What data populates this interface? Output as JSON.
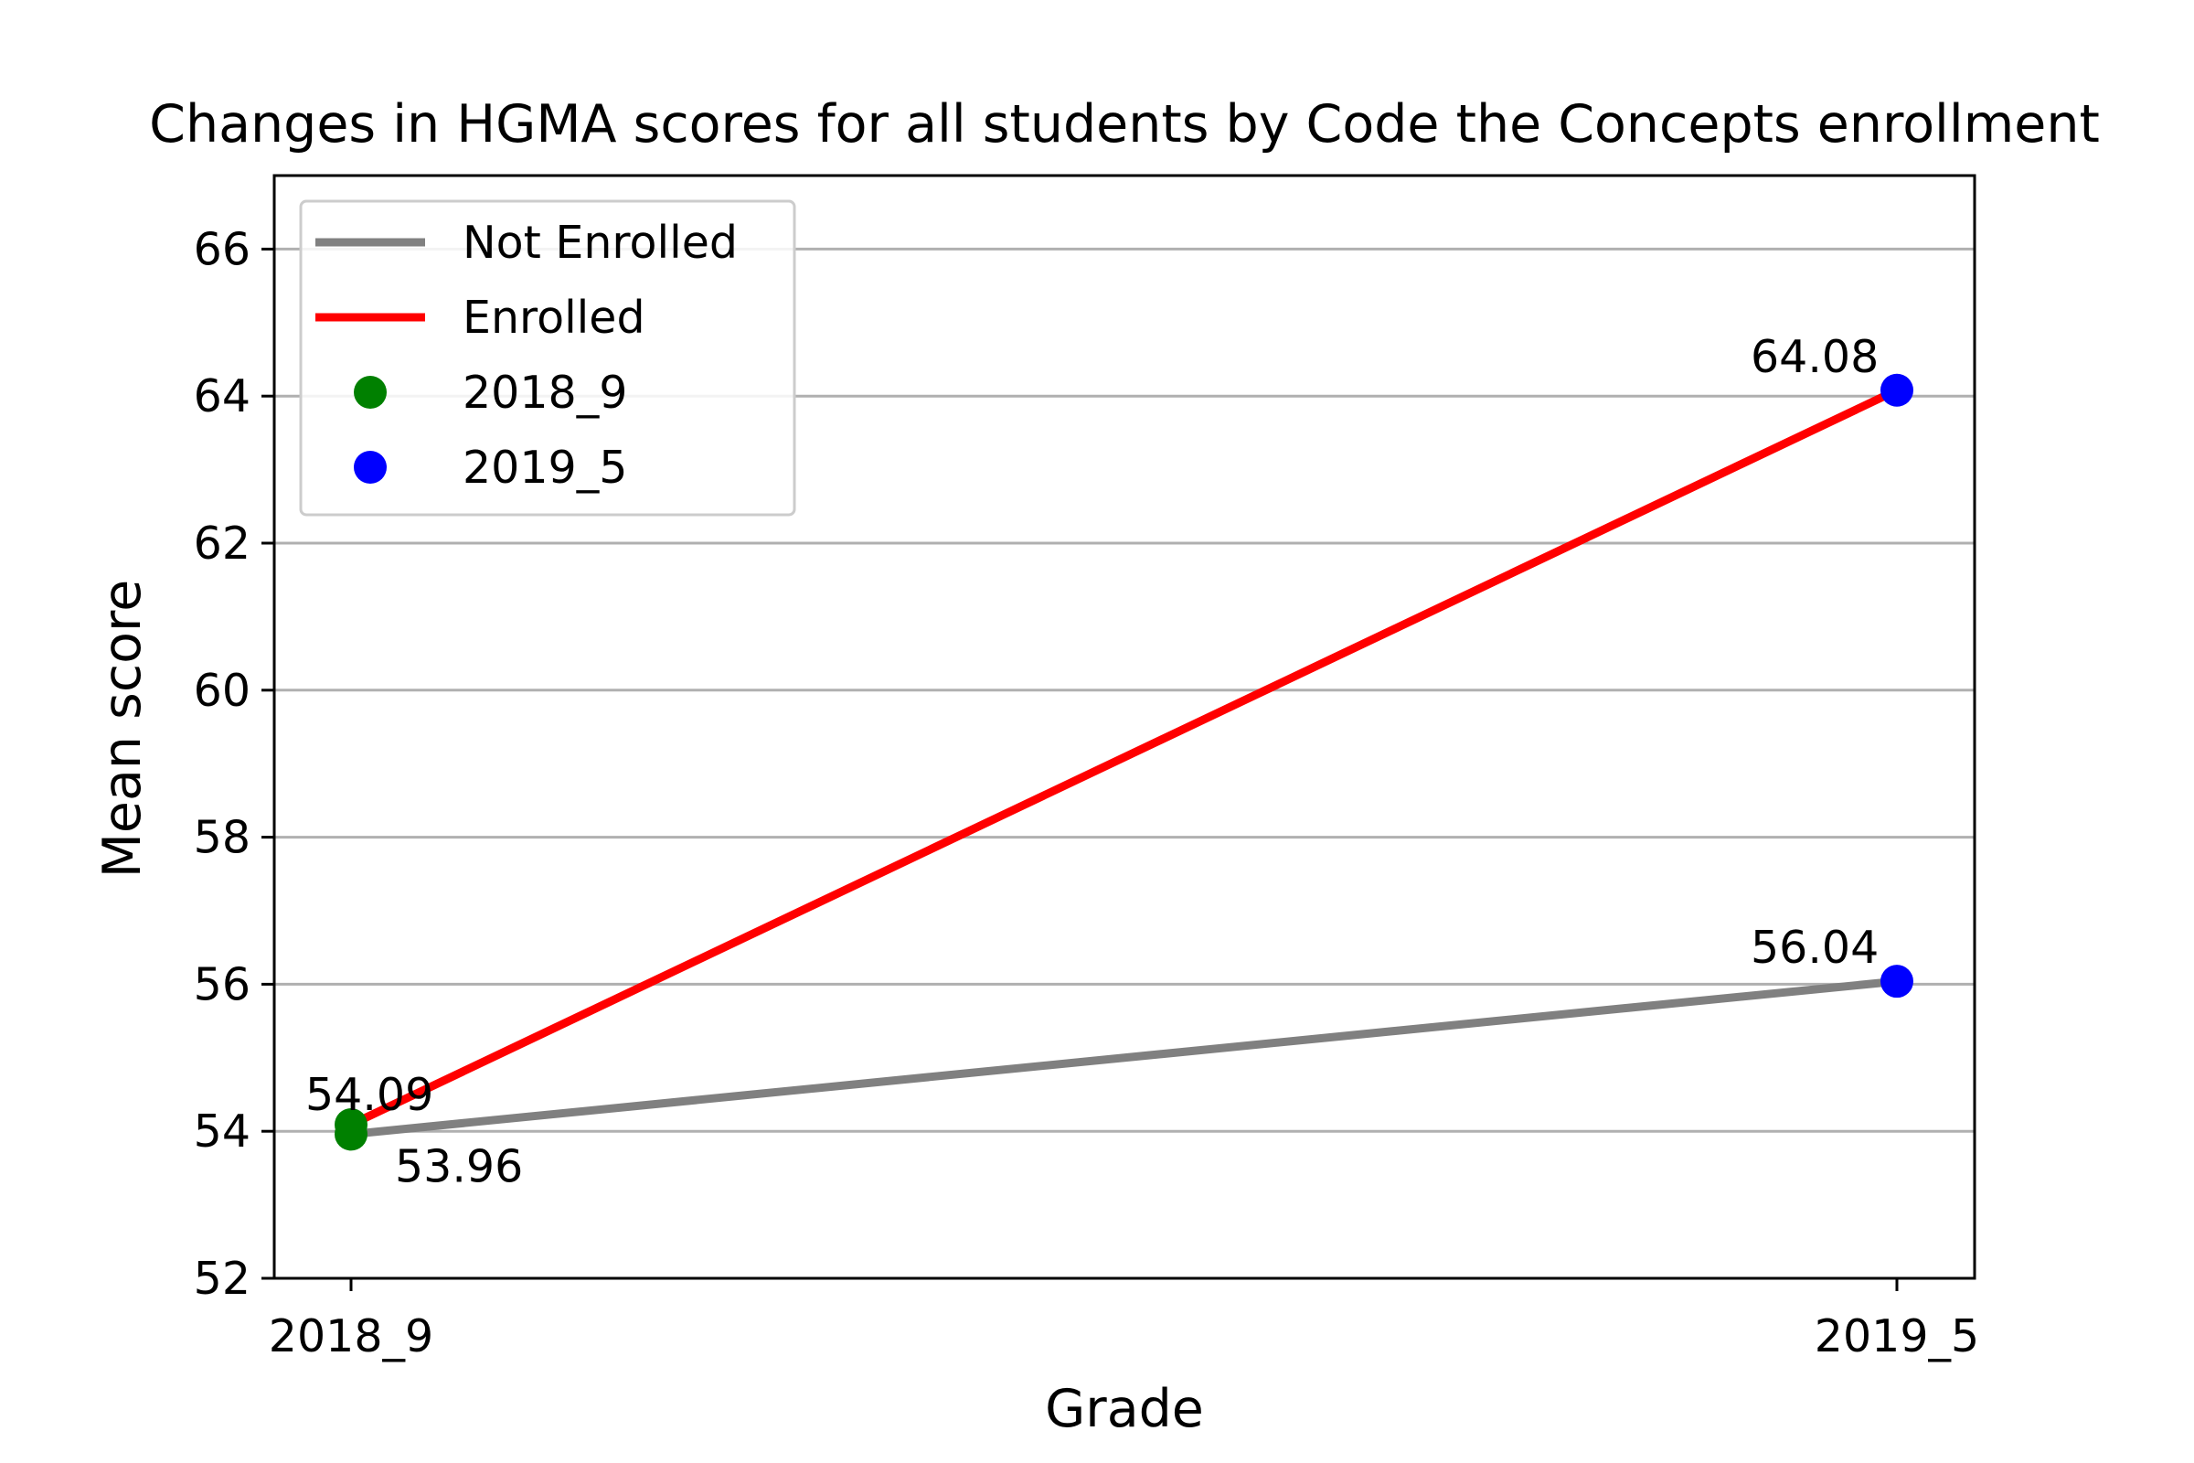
{
  "chart_data": {
    "type": "line",
    "title": "Changes in HGMA scores for all students by Code the Concepts enrollment",
    "xlabel": "Grade",
    "ylabel": "Mean score",
    "categories": [
      "2018_9",
      "2019_5"
    ],
    "ylim": [
      52,
      67
    ],
    "yticks": [
      52,
      54,
      56,
      58,
      60,
      62,
      64,
      66
    ],
    "grid": "horizontal",
    "legend_position": "top-left",
    "series": [
      {
        "name": "Not Enrolled",
        "values": [
          53.96,
          56.04
        ],
        "color": "#808080"
      },
      {
        "name": "Enrolled",
        "values": [
          54.09,
          64.08
        ],
        "color": "#ff0000"
      }
    ],
    "point_series": [
      {
        "name": "2018_9",
        "color": "#008000",
        "category_index": 0
      },
      {
        "name": "2019_5",
        "color": "#0000ff",
        "category_index": 1
      }
    ],
    "data_labels": [
      {
        "text": "54.09",
        "category_index": 0,
        "value": 54.09
      },
      {
        "text": "53.96",
        "category_index": 0,
        "value": 53.96
      },
      {
        "text": "64.08",
        "category_index": 1,
        "value": 64.08
      },
      {
        "text": "56.04",
        "category_index": 1,
        "value": 56.04
      }
    ]
  }
}
